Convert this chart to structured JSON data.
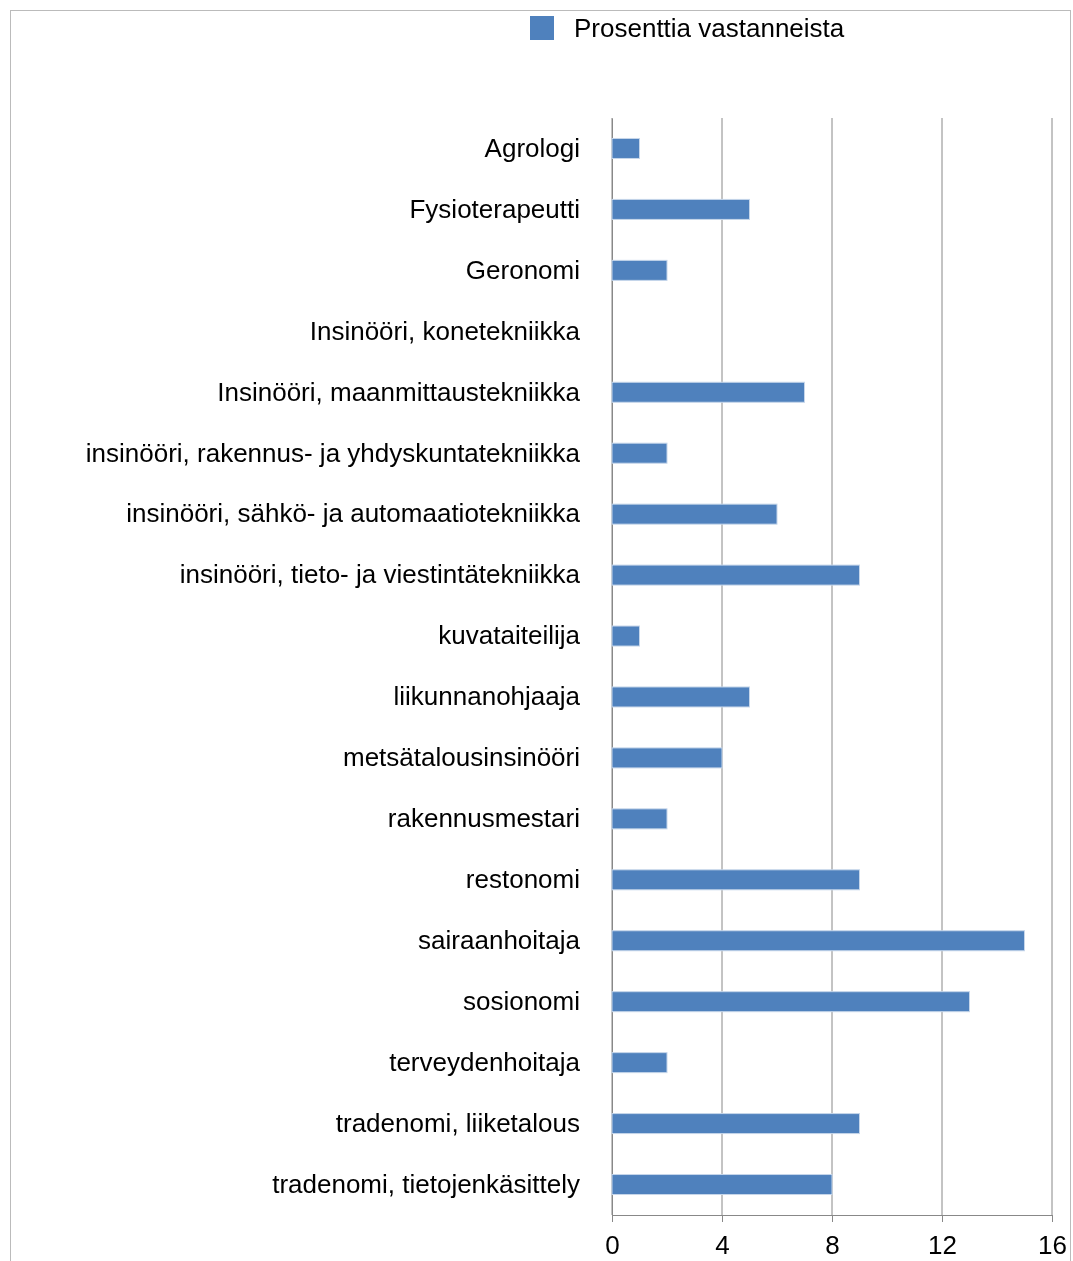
{
  "chart_data": {
    "type": "bar",
    "orientation": "horizontal",
    "categories": [
      "Agrologi",
      "Fysioterapeutti",
      "Geronomi",
      "Insinööri, konetekniikka",
      "Insinööri, maanmittaustekniikka",
      "insinööri, rakennus- ja yhdyskuntatekniikka",
      "insinööri, sähkö- ja automaatiotekniikka",
      "insinööri, tieto- ja viestintätekniikka",
      "kuvataiteilija",
      "liikunnanohjaaja",
      "metsätalousinsinööri",
      "rakennusmestari",
      "restonomi",
      "sairaanhoitaja",
      "sosionomi",
      "terveydenhoitaja",
      "tradenomi, liiketalous",
      "tradenomi, tietojenkäsittely"
    ],
    "series": [
      {
        "name": "Prosenttia vastanneista",
        "color": "#4f81bd",
        "values": [
          1,
          5,
          2,
          0,
          7,
          2,
          6,
          9,
          1,
          5,
          4,
          2,
          9,
          15,
          13,
          2,
          9,
          8
        ]
      }
    ],
    "xlim": [
      0,
      16
    ],
    "xticks": [
      0,
      4,
      8,
      12,
      16
    ],
    "grid": "x",
    "legend": "top"
  }
}
